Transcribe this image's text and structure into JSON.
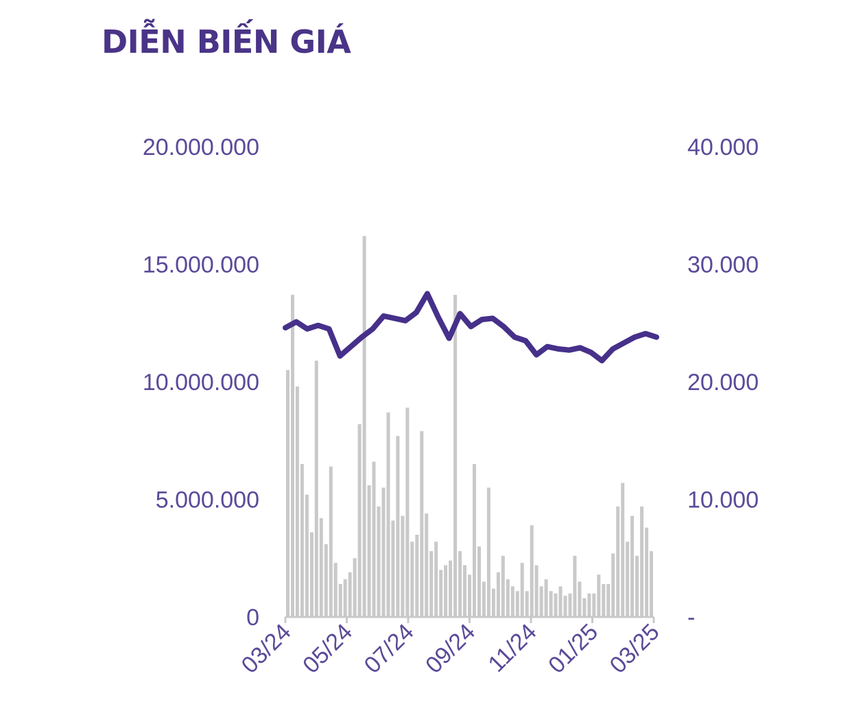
{
  "colors": {
    "price_line": "#46308a",
    "volume_bars": "#c9c9c9",
    "axis": "#c9c9c9",
    "text": "#5b4a98"
  },
  "chart_data": {
    "type": "bar+line",
    "title": "DIỄN BIẾN GIÁ",
    "x_ticks": [
      "03/24",
      "05/24",
      "07/24",
      "09/24",
      "11/24",
      "01/25",
      "03/25"
    ],
    "y_left": {
      "ticks": [
        "20.000.000",
        "15.000.000",
        "10.000.000",
        "5.000.000",
        "0"
      ],
      "range": [
        0,
        20000000
      ]
    },
    "y_right": {
      "ticks": [
        "40.000",
        "30.000",
        "20.000",
        "10.000",
        "-"
      ],
      "range": [
        0,
        40000
      ]
    },
    "series": [
      {
        "type": "line",
        "axis": "right",
        "points": [
          [
            "03/24",
            24600
          ],
          [
            "03/24",
            25100
          ],
          [
            "03/24",
            24500
          ],
          [
            "04/24",
            24800
          ],
          [
            "04/24",
            24500
          ],
          [
            "04/24",
            22200
          ],
          [
            "05/24",
            23000
          ],
          [
            "05/24",
            23800
          ],
          [
            "05/24",
            24500
          ],
          [
            "06/24",
            25600
          ],
          [
            "06/24",
            25400
          ],
          [
            "06/24",
            25200
          ],
          [
            "07/24",
            25900
          ],
          [
            "07/24",
            27500
          ],
          [
            "07/24",
            25500
          ],
          [
            "07/24",
            23700
          ],
          [
            "08/24",
            25800
          ],
          [
            "08/24",
            24700
          ],
          [
            "08/24",
            25300
          ],
          [
            "09/24",
            25400
          ],
          [
            "09/24",
            24700
          ],
          [
            "10/24",
            23800
          ],
          [
            "10/24",
            23500
          ],
          [
            "11/24",
            22300
          ],
          [
            "11/24",
            23000
          ],
          [
            "11/24",
            22800
          ],
          [
            "12/24",
            22700
          ],
          [
            "12/24",
            22900
          ],
          [
            "12/24",
            22500
          ],
          [
            "01/25",
            21800
          ],
          [
            "01/25",
            22800
          ],
          [
            "02/25",
            23300
          ],
          [
            "02/25",
            23800
          ],
          [
            "02/25",
            24100
          ],
          [
            "03/25",
            23800
          ]
        ]
      },
      {
        "type": "bar",
        "axis": "left",
        "values": [
          10500000,
          13700000,
          9800000,
          6500000,
          5200000,
          3600000,
          10900000,
          4200000,
          3100000,
          6400000,
          2300000,
          1400000,
          1600000,
          1900000,
          2500000,
          8200000,
          16200000,
          5600000,
          6600000,
          4700000,
          5500000,
          8700000,
          4100000,
          7700000,
          4300000,
          8900000,
          3200000,
          3500000,
          7900000,
          4400000,
          2800000,
          3200000,
          2000000,
          2200000,
          2400000,
          13700000,
          2800000,
          2200000,
          1800000,
          6500000,
          3000000,
          1500000,
          5500000,
          1200000,
          1900000,
          2600000,
          1600000,
          1300000,
          1100000,
          2300000,
          1100000,
          3900000,
          2200000,
          1300000,
          1600000,
          1100000,
          1000000,
          1300000,
          900000,
          1000000,
          2600000,
          1500000,
          800000,
          1000000,
          1000000,
          1800000,
          1400000,
          1400000,
          2700000,
          4700000,
          5700000,
          3200000,
          4300000,
          2600000,
          4700000,
          3800000,
          2800000
        ]
      }
    ]
  }
}
